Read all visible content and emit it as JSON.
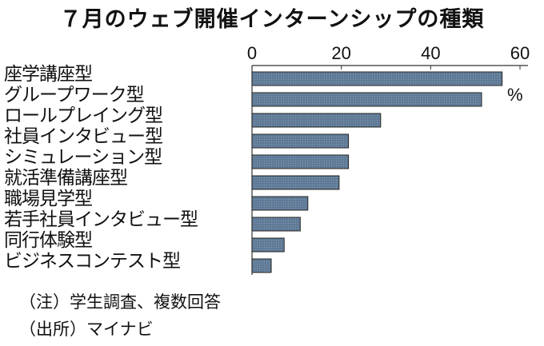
{
  "chart_data": {
    "type": "bar",
    "orientation": "horizontal",
    "title": "７月のウェブ開催インターンシップの種類",
    "unit": "%",
    "categories": [
      "座学講座型",
      "グループワーク型",
      "ロールプレイング型",
      "社員インタビュー型",
      "シミュレーション型",
      "就活準備講座型",
      "職場見学型",
      "若手社員インタビュー型",
      "同行体験型",
      "ビジネスコンテスト型"
    ],
    "values": [
      56,
      51.4,
      28.8,
      21.6,
      21.6,
      19.5,
      12.5,
      10.8,
      7.2,
      4.3
    ],
    "xlim": [
      0,
      60
    ],
    "xticks": [
      0,
      20,
      40,
      60
    ],
    "grid": false,
    "bar_color": "#5f7a96"
  },
  "notes": {
    "note": "（注）学生調査、複数回答",
    "source": "（出所）マイナビ"
  }
}
